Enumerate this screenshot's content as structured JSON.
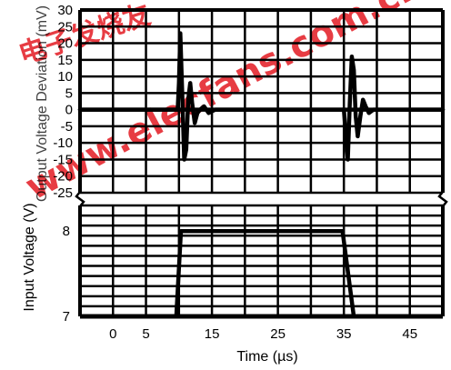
{
  "chart_data": [
    {
      "type": "line",
      "ylabel": "Output Voltage Deviation (mV)",
      "xlabel": "Time (µs)",
      "xlim": [
        -5,
        50
      ],
      "ylim": [
        -25,
        30
      ],
      "ytick_labels": [
        "30",
        "25",
        "20",
        "15",
        "10",
        "5",
        "0",
        "-5",
        "-10",
        "-15",
        "-20",
        "-25"
      ],
      "grid": true,
      "series": [
        {
          "x": [
            -5,
            9.8,
            10.0,
            10.2,
            10.5,
            10.8,
            11.1,
            11.4,
            11.7,
            12.0,
            12.4,
            12.8,
            13.2,
            13.8,
            14.5,
            15.5,
            50
          ],
          "values": [
            0,
            0,
            8,
            23,
            5,
            -15,
            -12,
            3,
            8,
            2,
            -4,
            -1,
            0,
            1,
            -1,
            0,
            0
          ]
        },
        {
          "x": [
            -5,
            35.0,
            35.3,
            35.6,
            35.9,
            36.2,
            36.5,
            36.8,
            37.1,
            37.5,
            37.9,
            38.3,
            38.8,
            39.5,
            40.5,
            50
          ],
          "values": [
            0,
            0,
            -8,
            -15,
            2,
            16,
            12,
            -2,
            -8,
            -2,
            3,
            1,
            -1,
            0,
            0,
            0
          ]
        }
      ]
    },
    {
      "type": "line",
      "ylabel": "Input Voltage (V)",
      "xlabel": "Time (µs)",
      "xlim": [
        -5,
        50
      ],
      "ylim": [
        7,
        8.3
      ],
      "ytick_labels": [
        "8",
        "7"
      ],
      "xtick_labels": [
        "0",
        "5",
        "15",
        "25",
        "35",
        "45"
      ],
      "xticks": [
        0,
        5,
        15,
        25,
        35,
        45
      ],
      "grid": true,
      "series": [
        {
          "x": [
            -5,
            9.6,
            10.3,
            34.8,
            36.5
          ],
          "values": [
            7,
            7,
            8,
            8,
            7
          ]
        }
      ]
    }
  ],
  "watermark": {
    "top": "电子发烧友",
    "bottom": "www.elecfans.com.cn",
    "color": "#e31b23"
  }
}
